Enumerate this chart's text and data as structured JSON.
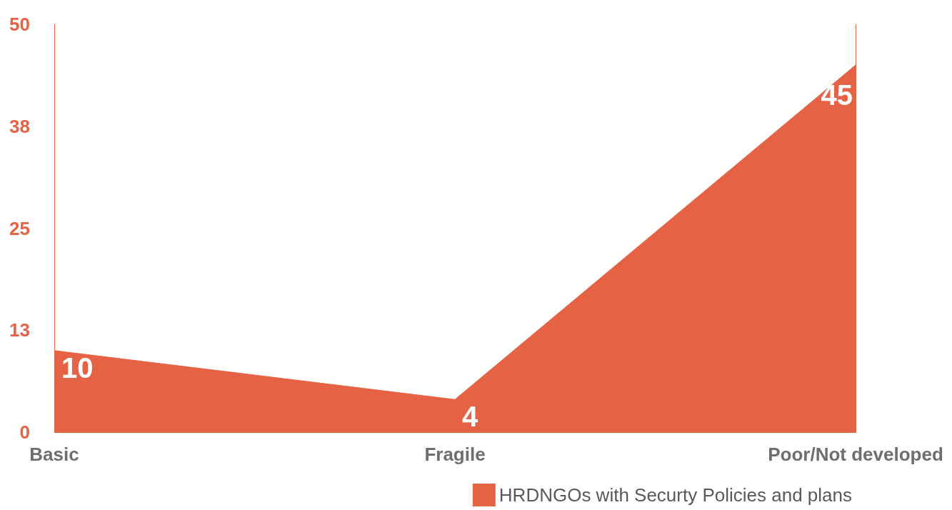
{
  "chart_data": {
    "type": "area",
    "categories": [
      "Basic",
      "Fragile",
      "Poor/Not developed"
    ],
    "series": [
      {
        "name": "HRDNGOs with Securty Policies and plans",
        "color": "#e66244",
        "values": [
          10,
          4,
          45
        ]
      }
    ],
    "ylim": [
      0,
      50
    ],
    "yticks": [
      0,
      {
        "value": 12.5,
        "label": "13"
      },
      25,
      {
        "value": 37.5,
        "label": "38"
      },
      50
    ],
    "grid": false,
    "legend": "bottom right",
    "marker": "none",
    "data_labels": true
  }
}
